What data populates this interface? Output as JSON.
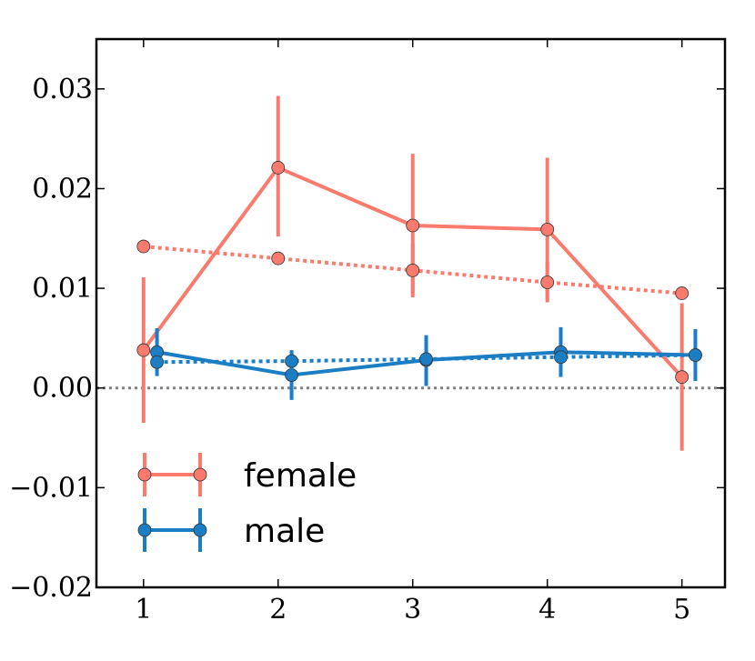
{
  "chart_data": {
    "type": "line",
    "title": "",
    "xlabel": "",
    "ylabel": "",
    "xlim": [
      0.65,
      5.32
    ],
    "ylim": [
      -0.02,
      0.035
    ],
    "x_ticks": [
      1,
      2,
      3,
      4,
      5
    ],
    "x_tick_labels": [
      "1",
      "2",
      "3",
      "4",
      "5"
    ],
    "y_ticks": [
      -0.02,
      -0.01,
      0.0,
      0.01,
      0.02,
      0.03
    ],
    "y_tick_labels": [
      "−0.02",
      "−0.01",
      "0.00",
      "0.01",
      "0.02",
      "0.03"
    ],
    "grid": false,
    "legend_position": "lower-left",
    "reference_line": {
      "y": 0.0,
      "style": "dotted",
      "color": "#808080"
    },
    "series": [
      {
        "name": "female",
        "kind": "observed",
        "color": "#fa7a6e",
        "line_style": "solid",
        "in_legend": true,
        "x": [
          1.0,
          2.0,
          3.0,
          4.0,
          5.0
        ],
        "y": [
          0.0038,
          0.0221,
          0.0163,
          0.0159,
          0.0011
        ],
        "err_low": [
          -0.0035,
          0.0152,
          0.0095,
          0.0088,
          -0.0063
        ],
        "err_high": [
          0.0111,
          0.0293,
          0.0235,
          0.0231,
          0.0085
        ]
      },
      {
        "name": "female",
        "kind": "fitted",
        "color": "#fa7a6e",
        "line_style": "dotted",
        "in_legend": false,
        "x": [
          1.0,
          2.0,
          3.0,
          4.0,
          5.0
        ],
        "y": [
          0.0142,
          0.013,
          0.0118,
          0.0106,
          0.0095
        ],
        "err_low": [
          null,
          null,
          0.0091,
          0.0086,
          null
        ],
        "err_high": [
          null,
          null,
          0.0145,
          0.0126,
          null
        ]
      },
      {
        "name": "male",
        "kind": "observed",
        "color": "#1b7ec5",
        "line_style": "solid",
        "in_legend": true,
        "x": [
          1.1,
          2.1,
          3.1,
          4.1,
          5.1
        ],
        "y": [
          0.0036,
          0.0013,
          0.0028,
          0.0036,
          0.0033
        ],
        "err_low": [
          0.0012,
          -0.0012,
          0.0002,
          0.0011,
          0.0007
        ],
        "err_high": [
          0.006,
          0.0038,
          0.0053,
          0.0061,
          0.0059
        ]
      },
      {
        "name": "male",
        "kind": "fitted",
        "color": "#1b7ec5",
        "line_style": "dotted",
        "in_legend": false,
        "x": [
          1.1,
          2.1,
          3.1,
          4.1,
          5.1
        ],
        "y": [
          0.0026,
          0.0027,
          0.0029,
          0.0031,
          0.0033
        ],
        "err_low": [
          null,
          0.0017,
          null,
          null,
          null
        ],
        "err_high": [
          null,
          0.0037,
          null,
          null,
          null
        ]
      }
    ],
    "legend": [
      {
        "label": "female",
        "color": "#fa7a6e"
      },
      {
        "label": "male",
        "color": "#1b7ec5"
      }
    ]
  }
}
